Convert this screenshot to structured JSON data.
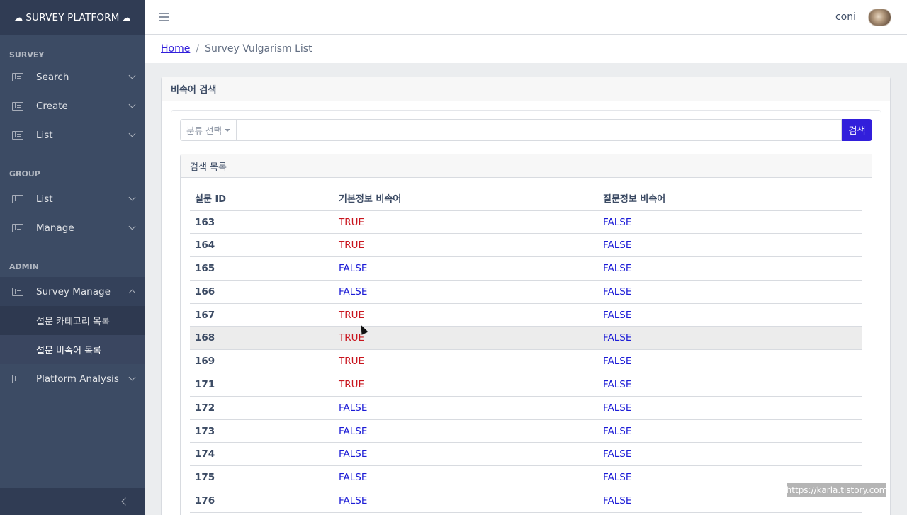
{
  "sidebar": {
    "brand": "SURVEY PLATFORM",
    "brand_icon": "cloud-icon",
    "sections": {
      "survey": {
        "title": "SURVEY",
        "items": [
          "Search",
          "Create",
          "List"
        ]
      },
      "group": {
        "title": "GROUP",
        "items": [
          "List",
          "Manage"
        ]
      },
      "admin": {
        "title": "ADMIN",
        "survey_manage": "Survey Manage",
        "sub_items": [
          "설문 카테고리 목록",
          "설문 비속어 목록"
        ],
        "platform_analysis": "Platform Analysis"
      }
    }
  },
  "header": {
    "user_name": "coni"
  },
  "breadcrumb": {
    "home": "Home",
    "current": "Survey Vulgarism List"
  },
  "search_card": {
    "title": "비속어 검색",
    "category_label": "분류 선택",
    "search_value": "",
    "search_button": "검색"
  },
  "list_card": {
    "title": "검색 목록",
    "columns": [
      "설문 ID",
      "기본정보 비속어",
      "질문정보 비속어"
    ],
    "rows": [
      [
        "163",
        "TRUE",
        "FALSE"
      ],
      [
        "164",
        "TRUE",
        "FALSE"
      ],
      [
        "165",
        "FALSE",
        "FALSE"
      ],
      [
        "166",
        "FALSE",
        "FALSE"
      ],
      [
        "167",
        "TRUE",
        "FALSE"
      ],
      [
        "168",
        "TRUE",
        "FALSE"
      ],
      [
        "169",
        "TRUE",
        "FALSE"
      ],
      [
        "171",
        "TRUE",
        "FALSE"
      ],
      [
        "172",
        "FALSE",
        "FALSE"
      ],
      [
        "173",
        "FALSE",
        "FALSE"
      ],
      [
        "174",
        "FALSE",
        "FALSE"
      ],
      [
        "175",
        "FALSE",
        "FALSE"
      ],
      [
        "176",
        "FALSE",
        "FALSE"
      ]
    ]
  },
  "colors": {
    "sidebar_bg": "#3c4b64",
    "accent": "#321fdb",
    "true_color": "#c9151e",
    "false_color": "#1b1bd6"
  },
  "watermark": "https://karla.tistory.com"
}
